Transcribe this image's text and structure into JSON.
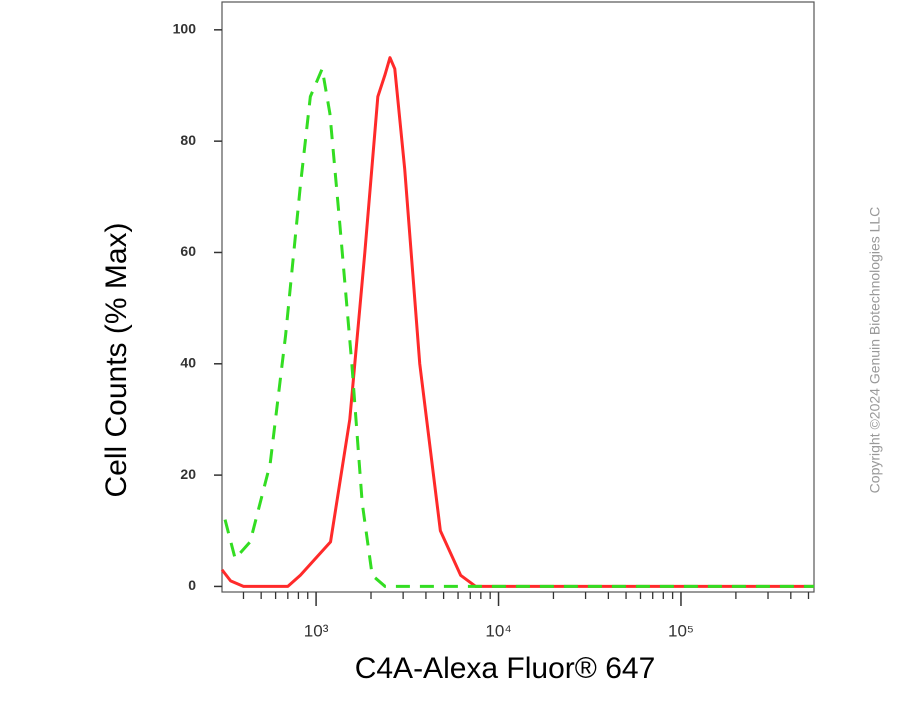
{
  "chart_data": {
    "type": "line",
    "xlabel": "C4A-Alexa Fluor® 647",
    "ylabel": "Cell Counts (% Max)",
    "annotation": "Copyright ©2024 Genuin Biotechnologies LLC",
    "xscale": "log",
    "xlim": [
      305,
      536000
    ],
    "ylim": [
      -1,
      105
    ],
    "xticks": [
      {
        "value": 1000,
        "label": "10³"
      },
      {
        "value": 10000,
        "label": "10⁴"
      },
      {
        "value": 100000,
        "label": "10⁵"
      }
    ],
    "yticks": [
      0,
      20,
      40,
      60,
      80,
      100
    ],
    "series": [
      {
        "color": "#ff2a2a",
        "style": "solid",
        "x": [
          305,
          340,
          400,
          700,
          820,
          1200,
          1530,
          1850,
          2180,
          2390,
          2540,
          2700,
          3060,
          3700,
          4800,
          6200,
          7500,
          20000,
          100000,
          536000
        ],
        "values": [
          3,
          1,
          0,
          0,
          2,
          8,
          30,
          60,
          88,
          92,
          95,
          93,
          75,
          40,
          10,
          2,
          0,
          0,
          0,
          0
        ]
      },
      {
        "color": "#33dd22",
        "style": "dashed",
        "x": [
          317,
          360,
          435,
          560,
          680,
          820,
          930,
          1080,
          1190,
          1350,
          1570,
          1790,
          2030,
          2390,
          10000,
          100000,
          536000
        ],
        "values": [
          12,
          5,
          8,
          22,
          45,
          72,
          88,
          93,
          85,
          65,
          40,
          15,
          2,
          0,
          0,
          0,
          0
        ]
      }
    ]
  }
}
